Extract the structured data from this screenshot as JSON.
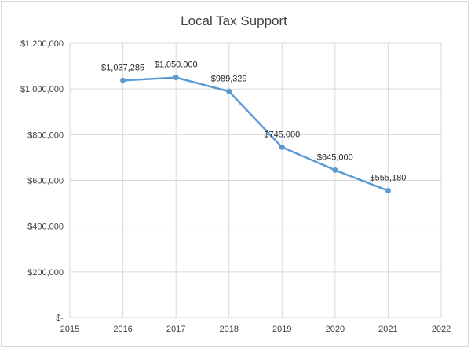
{
  "chart_data": {
    "type": "line",
    "title": "Local Tax Support",
    "xlabel": "",
    "ylabel": "",
    "x_ticks": [
      "2015",
      "2016",
      "2017",
      "2018",
      "2019",
      "2020",
      "2021",
      "2022"
    ],
    "y_ticks": [
      "$-",
      "$200,000",
      "$400,000",
      "$600,000",
      "$800,000",
      "$1,000,000",
      "$1,200,000"
    ],
    "xlim": [
      2015,
      2022
    ],
    "ylim": [
      0,
      1200000
    ],
    "grid": true,
    "legend": "none",
    "series": [
      {
        "color": "#5b9bd5",
        "x": [
          2016,
          2017,
          2018,
          2019,
          2020,
          2021
        ],
        "values": [
          1037285,
          1050000,
          989329,
          745000,
          645000,
          555180
        ],
        "labels": [
          "$1,037,285",
          "$1,050,000",
          "$989,329",
          "$745,000",
          "$645,000",
          "$555,180"
        ]
      }
    ]
  }
}
